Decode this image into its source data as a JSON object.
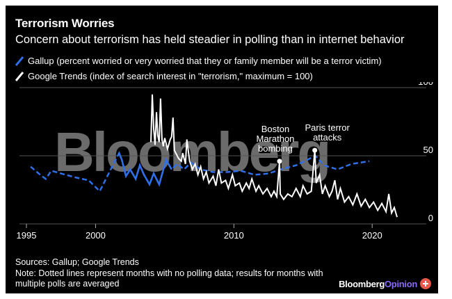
{
  "title": "Terrorism Worries",
  "subtitle": "Concern about terrorism has held steadier in polling than in internet behavior",
  "watermark": "Bloomberg",
  "legend": {
    "gallup": "Gallup (percent worried or very worried that they or family member will be a terror victim)",
    "google": "Google Trends (index of search interest in \"terrorism,\" maximum = 100)"
  },
  "footer": {
    "source": "Sources: Gallup; Google Trends",
    "note_line1": "Note: Dotted lines represent months with no polling data; results for months with",
    "note_line2": "multiple polls are averaged"
  },
  "brand": {
    "part1": "Bloomberg",
    "part2": "Opinion"
  },
  "colors": {
    "gallup": "#2f6fe8",
    "google": "#ffffff",
    "background": "#000000",
    "grid": "#555555"
  },
  "chart_data": {
    "type": "line",
    "xlim": [
      1995,
      2021.9
    ],
    "ylim": [
      0,
      100
    ],
    "x_ticks": [
      1995,
      2000,
      2010,
      2020
    ],
    "y_ticks": [
      0,
      50,
      100
    ],
    "grid": true,
    "series": [
      {
        "name": "Gallup (percent worried or very worried that they or family member will be a terror victim)",
        "points": [
          [
            1995.3,
            42
          ],
          [
            1996.0,
            36
          ],
          [
            1996.4,
            33
          ],
          [
            1996.8,
            39
          ],
          [
            1997.5,
            37
          ],
          [
            1998.6,
            34
          ],
          [
            1999.5,
            32
          ],
          [
            2000.3,
            24
          ],
          [
            2001.0,
            38
          ],
          [
            2001.7,
            52
          ],
          [
            2001.9,
            47
          ],
          [
            2002.2,
            35
          ],
          [
            2002.5,
            40
          ],
          [
            2002.9,
            33
          ],
          [
            2003.2,
            43
          ],
          [
            2003.5,
            36
          ],
          [
            2003.9,
            29
          ],
          [
            2004.2,
            37
          ],
          [
            2004.6,
            29
          ],
          [
            2005.1,
            47
          ],
          [
            2005.5,
            40
          ],
          [
            2005.9,
            44
          ],
          [
            2006.4,
            40
          ],
          [
            2006.9,
            45
          ],
          [
            2007.6,
            40
          ],
          [
            2008.5,
            38
          ],
          [
            2009.5,
            38
          ],
          [
            2010.5,
            39
          ],
          [
            2011.5,
            36
          ],
          [
            2012.5,
            37
          ],
          [
            2013.4,
            40
          ],
          [
            2014.5,
            43
          ],
          [
            2015.5,
            48
          ],
          [
            2015.9,
            50
          ],
          [
            2016.5,
            43
          ],
          [
            2017.5,
            40
          ],
          [
            2018.5,
            44
          ],
          [
            2019.8,
            46
          ]
        ]
      },
      {
        "name": "Google Trends (index of search interest in \"terrorism,\" maximum = 100)",
        "points": [
          [
            2004.0,
            60
          ],
          [
            2004.1,
            95
          ],
          [
            2004.2,
            70
          ],
          [
            2004.3,
            58
          ],
          [
            2004.4,
            82
          ],
          [
            2004.5,
            65
          ],
          [
            2004.6,
            60
          ],
          [
            2004.7,
            92
          ],
          [
            2004.8,
            62
          ],
          [
            2004.9,
            57
          ],
          [
            2005.0,
            63
          ],
          [
            2005.2,
            55
          ],
          [
            2005.4,
            62
          ],
          [
            2005.5,
            64
          ],
          [
            2005.6,
            78
          ],
          [
            2005.7,
            54
          ],
          [
            2005.9,
            50
          ],
          [
            2006.0,
            48
          ],
          [
            2006.2,
            46
          ],
          [
            2006.3,
            52
          ],
          [
            2006.5,
            44
          ],
          [
            2006.6,
            62
          ],
          [
            2006.8,
            46
          ],
          [
            2007.0,
            40
          ],
          [
            2007.2,
            44
          ],
          [
            2007.4,
            36
          ],
          [
            2007.6,
            42
          ],
          [
            2007.8,
            33
          ],
          [
            2008.0,
            38
          ],
          [
            2008.2,
            30
          ],
          [
            2008.5,
            35
          ],
          [
            2008.7,
            28
          ],
          [
            2008.9,
            40
          ],
          [
            2009.1,
            30
          ],
          [
            2009.4,
            32
          ],
          [
            2009.6,
            26
          ],
          [
            2009.9,
            36
          ],
          [
            2010.1,
            28
          ],
          [
            2010.4,
            30
          ],
          [
            2010.6,
            24
          ],
          [
            2010.9,
            30
          ],
          [
            2011.1,
            26
          ],
          [
            2011.3,
            33
          ],
          [
            2011.6,
            24
          ],
          [
            2011.8,
            28
          ],
          [
            2012.1,
            22
          ],
          [
            2012.4,
            26
          ],
          [
            2012.7,
            20
          ],
          [
            2012.9,
            24
          ],
          [
            2013.1,
            20
          ],
          [
            2013.3,
            46
          ],
          [
            2013.35,
            22
          ],
          [
            2013.6,
            18
          ],
          [
            2013.9,
            22
          ],
          [
            2014.2,
            20
          ],
          [
            2014.5,
            26
          ],
          [
            2014.8,
            20
          ],
          [
            2015.0,
            28
          ],
          [
            2015.3,
            22
          ],
          [
            2015.6,
            24
          ],
          [
            2015.85,
            54
          ],
          [
            2015.95,
            30
          ],
          [
            2016.2,
            36
          ],
          [
            2016.4,
            22
          ],
          [
            2016.6,
            28
          ],
          [
            2016.9,
            20
          ],
          [
            2017.1,
            24
          ],
          [
            2017.3,
            32
          ],
          [
            2017.5,
            18
          ],
          [
            2017.7,
            26
          ],
          [
            2018.0,
            16
          ],
          [
            2018.3,
            20
          ],
          [
            2018.6,
            14
          ],
          [
            2018.9,
            22
          ],
          [
            2019.2,
            13
          ],
          [
            2019.5,
            18
          ],
          [
            2019.8,
            12
          ],
          [
            2020.1,
            16
          ],
          [
            2020.4,
            10
          ],
          [
            2020.7,
            15
          ],
          [
            2021.0,
            9
          ],
          [
            2021.2,
            22
          ],
          [
            2021.4,
            8
          ],
          [
            2021.6,
            12
          ],
          [
            2021.8,
            5
          ]
        ]
      }
    ],
    "annotations": [
      {
        "lines": [
          "Boston",
          "Marathon",
          "bombing"
        ],
        "x": 2013.3,
        "y": 46
      },
      {
        "lines": [
          "Paris terror",
          "attacks"
        ],
        "x": 2015.85,
        "y": 54
      }
    ]
  }
}
